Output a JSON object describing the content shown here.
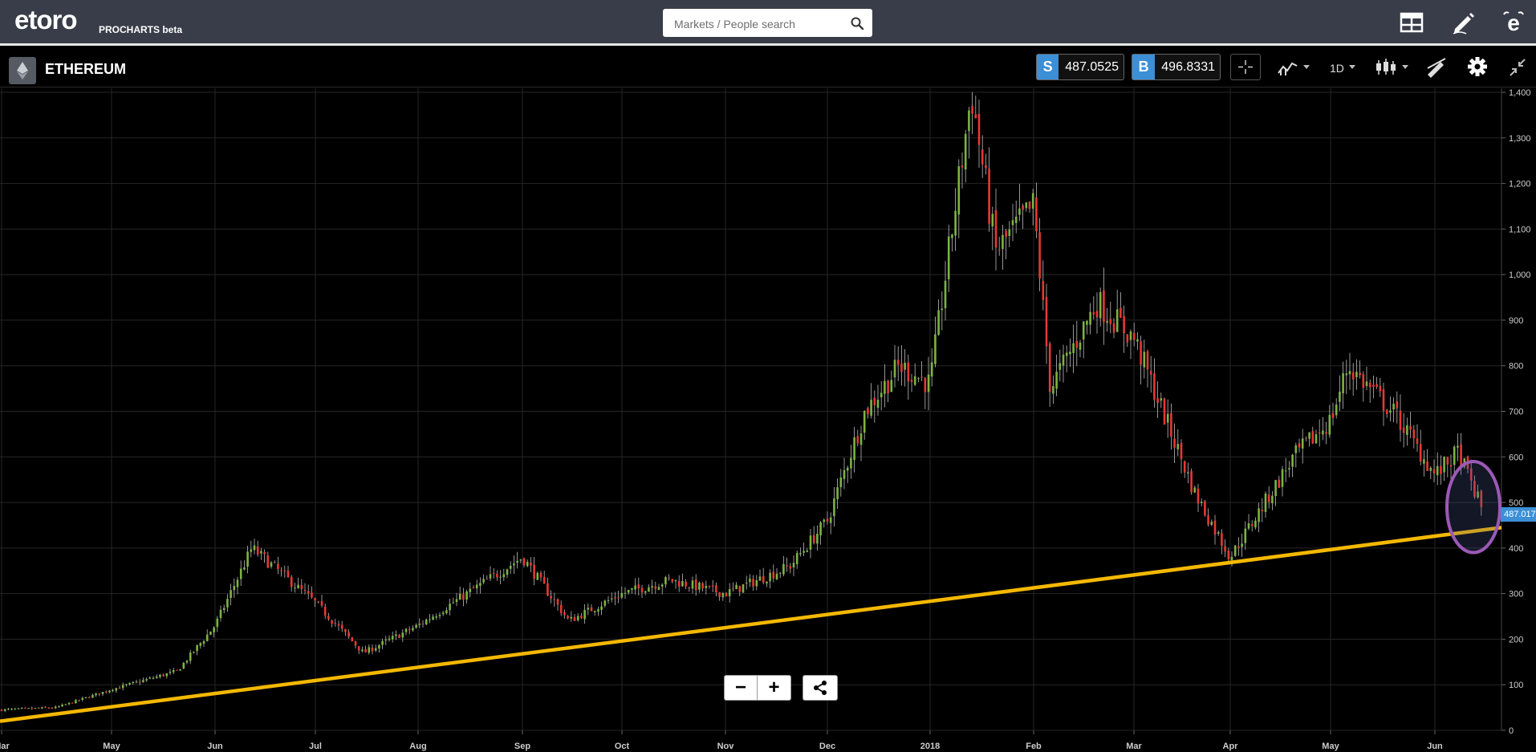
{
  "app": {
    "logo": "etoro",
    "product": "PROCHARTS beta"
  },
  "search": {
    "placeholder": "Markets / People search"
  },
  "instrument": {
    "name": "ETHEREUM",
    "sell_label": "S",
    "sell_price": "487.0525",
    "buy_label": "B",
    "buy_price": "496.8331",
    "last_price_tag": "487.017",
    "timeframe": "1D"
  },
  "toolbar": {
    "icons": [
      "layout-icon",
      "pencil-icon",
      "etoro-e-icon",
      "crosshair-icon",
      "indicators-icon",
      "candlestick-type-icon",
      "drawing-tools-icon",
      "settings-icon",
      "collapse-icon"
    ],
    "zoom_out": "−",
    "zoom_in": "+"
  },
  "colors": {
    "topbar": "#393d49",
    "up_candle": "#7cb342",
    "down_candle": "#e53935",
    "trendline": "#f5b800",
    "highlight_circle": "#9b59b6",
    "price_tag": "#3c8fd6"
  },
  "chart_data": {
    "type": "candlestick",
    "y_axis_labels": [
      "1,400",
      "1,300",
      "1,200",
      "1,100",
      "1,000",
      "900",
      "800",
      "700",
      "600",
      "500",
      "400",
      "300",
      "200",
      "100",
      "0"
    ],
    "x_axis_labels": [
      "Mar",
      "May",
      "Jun",
      "Jul",
      "Aug",
      "Sep",
      "Oct",
      "Nov",
      "Dec",
      "2018",
      "Feb",
      "Mar",
      "Apr",
      "May",
      "Jun"
    ],
    "ylim": [
      0,
      1400
    ],
    "trendline": {
      "from": [
        "2017-03",
        20
      ],
      "to": [
        "2018-06",
        445
      ]
    },
    "highlight": {
      "label": "",
      "price_range": [
        390,
        590
      ],
      "period": "2018-06"
    },
    "close_series": [
      {
        "date": "2017-03",
        "value": 45
      },
      {
        "date": "2017-04",
        "value": 50
      },
      {
        "date": "2017-05",
        "value": 90
      },
      {
        "date": "2017-05-20",
        "value": 130
      },
      {
        "date": "2017-06",
        "value": 230
      },
      {
        "date": "2017-06-12",
        "value": 400
      },
      {
        "date": "2017-07",
        "value": 280
      },
      {
        "date": "2017-07-15",
        "value": 170
      },
      {
        "date": "2017-08",
        "value": 230
      },
      {
        "date": "2017-08-15",
        "value": 300
      },
      {
        "date": "2017-09",
        "value": 380
      },
      {
        "date": "2017-09-15",
        "value": 240
      },
      {
        "date": "2017-10",
        "value": 300
      },
      {
        "date": "2017-10-15",
        "value": 330
      },
      {
        "date": "2017-11",
        "value": 300
      },
      {
        "date": "2017-11-20",
        "value": 360
      },
      {
        "date": "2017-12",
        "value": 460
      },
      {
        "date": "2017-12-12",
        "value": 700
      },
      {
        "date": "2017-12-22",
        "value": 800
      },
      {
        "date": "2018-01",
        "value": 760
      },
      {
        "date": "2018-01-13",
        "value": 1400
      },
      {
        "date": "2018-01-20",
        "value": 1050
      },
      {
        "date": "2018-02",
        "value": 1150
      },
      {
        "date": "2018-02-06",
        "value": 750
      },
      {
        "date": "2018-02-20",
        "value": 940
      },
      {
        "date": "2018-03",
        "value": 860
      },
      {
        "date": "2018-03-20",
        "value": 520
      },
      {
        "date": "2018-04",
        "value": 380
      },
      {
        "date": "2018-04-20",
        "value": 600
      },
      {
        "date": "2018-05",
        "value": 680
      },
      {
        "date": "2018-05-06",
        "value": 800
      },
      {
        "date": "2018-05-20",
        "value": 690
      },
      {
        "date": "2018-06",
        "value": 560
      },
      {
        "date": "2018-06-08",
        "value": 610
      },
      {
        "date": "2018-06-15",
        "value": 487
      }
    ]
  }
}
